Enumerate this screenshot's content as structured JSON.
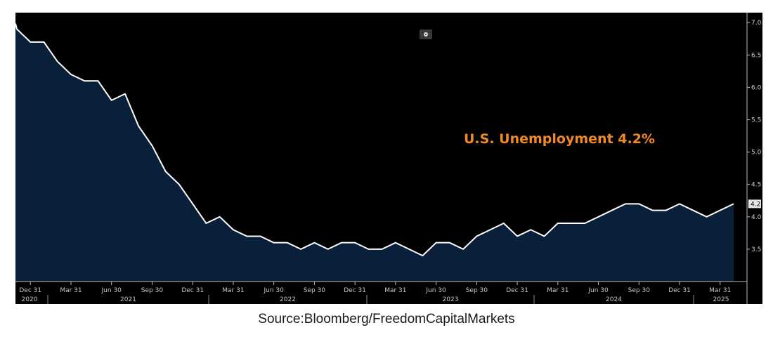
{
  "chart_data": {
    "type": "area",
    "annotation": "U.S. Unemployment 4.2%",
    "ylim": [
      3.0,
      7.1
    ],
    "y_ticks": [
      7.0,
      6.5,
      6.0,
      5.5,
      5.0,
      4.5,
      4.0,
      3.5
    ],
    "last_value_label": "4.2",
    "x_ticks": [
      "Dec 31",
      "Mar 31",
      "Jun 30",
      "Sep 30",
      "Dec 31",
      "Mar 31",
      "Jun 30",
      "Sep 30",
      "Dec 31",
      "Mar 31",
      "Jun 30",
      "Sep 30",
      "Dec 31",
      "Mar 31",
      "Jun 30",
      "Sep 30",
      "Dec 31",
      "Mar 31"
    ],
    "years": [
      "2020",
      "2021",
      "2022",
      "2023",
      "2024",
      "2025"
    ],
    "series": [
      {
        "values": [
          [
            "2020-11",
            6.9
          ],
          [
            "2020-12",
            6.7
          ],
          [
            "2021-01",
            6.7
          ],
          [
            "2021-02",
            6.4
          ],
          [
            "2021-03",
            6.2
          ],
          [
            "2021-04",
            6.1
          ],
          [
            "2021-05",
            6.1
          ],
          [
            "2021-06",
            5.8
          ],
          [
            "2021-07",
            5.9
          ],
          [
            "2021-08",
            5.4
          ],
          [
            "2021-09",
            5.1
          ],
          [
            "2021-10",
            4.7
          ],
          [
            "2021-11",
            4.5
          ],
          [
            "2021-12",
            4.2
          ],
          [
            "2022-01",
            3.9
          ],
          [
            "2022-02",
            4.0
          ],
          [
            "2022-03",
            3.8
          ],
          [
            "2022-04",
            3.7
          ],
          [
            "2022-05",
            3.7
          ],
          [
            "2022-06",
            3.6
          ],
          [
            "2022-07",
            3.6
          ],
          [
            "2022-08",
            3.5
          ],
          [
            "2022-09",
            3.6
          ],
          [
            "2022-10",
            3.5
          ],
          [
            "2022-11",
            3.6
          ],
          [
            "2022-12",
            3.6
          ],
          [
            "2023-01",
            3.5
          ],
          [
            "2023-02",
            3.5
          ],
          [
            "2023-03",
            3.6
          ],
          [
            "2023-04",
            3.5
          ],
          [
            "2023-05",
            3.4
          ],
          [
            "2023-06",
            3.6
          ],
          [
            "2023-07",
            3.6
          ],
          [
            "2023-08",
            3.5
          ],
          [
            "2023-09",
            3.7
          ],
          [
            "2023-10",
            3.8
          ],
          [
            "2023-11",
            3.9
          ],
          [
            "2023-12",
            3.7
          ],
          [
            "2024-01",
            3.8
          ],
          [
            "2024-02",
            3.7
          ],
          [
            "2024-03",
            3.9
          ],
          [
            "2024-04",
            3.9
          ],
          [
            "2024-05",
            3.9
          ],
          [
            "2024-06",
            4.0
          ],
          [
            "2024-07",
            4.1
          ],
          [
            "2024-08",
            4.2
          ],
          [
            "2024-09",
            4.2
          ],
          [
            "2024-10",
            4.1
          ],
          [
            "2024-11",
            4.1
          ],
          [
            "2024-12",
            4.2
          ],
          [
            "2025-01",
            4.1
          ],
          [
            "2025-02",
            4.0
          ],
          [
            "2025-03",
            4.1
          ],
          [
            "2025-04",
            4.2
          ]
        ]
      }
    ],
    "colors": {
      "fill": "#0a1f3a",
      "line": "#ffffff",
      "annotation": "#f08a24",
      "background": "#000000"
    },
    "grid": false
  },
  "source": "Source:Bloomberg/FreedomCapitalMarkets",
  "icons": {
    "settings": "settings-icon"
  }
}
